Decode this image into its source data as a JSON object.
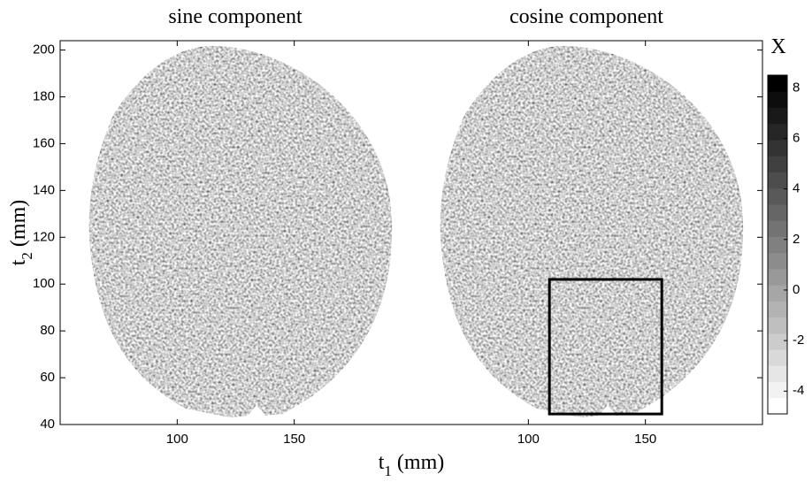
{
  "chart_data": {
    "type": "heatmap",
    "panels": [
      {
        "title": "sine component"
      },
      {
        "title": "cosine component",
        "roi": {
          "x": [
            109,
            157
          ],
          "y": [
            44.5,
            102
          ]
        }
      }
    ],
    "xlabel": {
      "main": "t",
      "sub": "1",
      "unit": "(mm)"
    },
    "ylabel": {
      "main": "t",
      "sub": "2",
      "unit": "(mm)"
    },
    "xlim": [
      50,
      200
    ],
    "xticks": [
      100,
      150
    ],
    "ylim": [
      40,
      204
    ],
    "yticks": [
      40,
      60,
      80,
      100,
      120,
      140,
      160,
      180,
      200
    ],
    "colorbar": {
      "label": "X",
      "clim": [
        -4.9,
        8.5
      ],
      "ticks": [
        -4,
        -2,
        0,
        2,
        4,
        6,
        8
      ]
    }
  }
}
